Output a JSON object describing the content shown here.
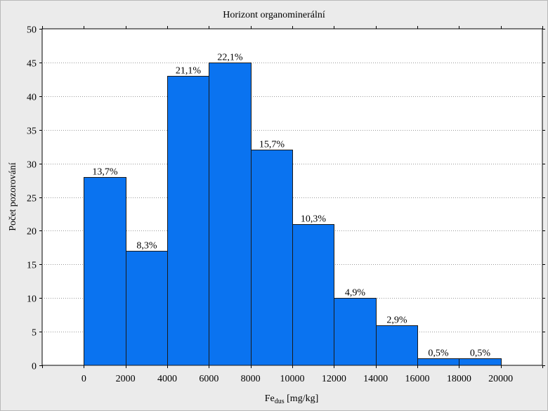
{
  "chart_data": {
    "type": "bar",
    "title": "Horizont organominerální",
    "xlabel": "Fe",
    "xlabel_sub": "dus",
    "xlabel_unit": " [mg/kg]",
    "ylabel": "Počet pozorování",
    "xlim": [
      -2000,
      22000
    ],
    "ylim": [
      0,
      50
    ],
    "x_ticks": [
      0,
      2000,
      4000,
      6000,
      8000,
      10000,
      12000,
      14000,
      16000,
      18000,
      20000
    ],
    "y_ticks": [
      0,
      5,
      10,
      15,
      20,
      25,
      30,
      35,
      40,
      45,
      50
    ],
    "bins": [
      {
        "start": 0,
        "end": 2000,
        "value": 28,
        "label": "13,7%"
      },
      {
        "start": 2000,
        "end": 4000,
        "value": 17,
        "label": "8,3%"
      },
      {
        "start": 4000,
        "end": 6000,
        "value": 43,
        "label": "21,1%"
      },
      {
        "start": 6000,
        "end": 8000,
        "value": 45,
        "label": "22,1%"
      },
      {
        "start": 8000,
        "end": 10000,
        "value": 32,
        "label": "15,7%"
      },
      {
        "start": 10000,
        "end": 12000,
        "value": 21,
        "label": "10,3%"
      },
      {
        "start": 12000,
        "end": 14000,
        "value": 10,
        "label": "4,9%"
      },
      {
        "start": 14000,
        "end": 16000,
        "value": 6,
        "label": "2,9%"
      },
      {
        "start": 16000,
        "end": 18000,
        "value": 1,
        "label": "0,5%"
      },
      {
        "start": 18000,
        "end": 20000,
        "value": 1,
        "label": "0,5%"
      }
    ],
    "grid": true,
    "bar_color": "#0a73f0",
    "bar_edge_color": "#1a1a1a"
  }
}
